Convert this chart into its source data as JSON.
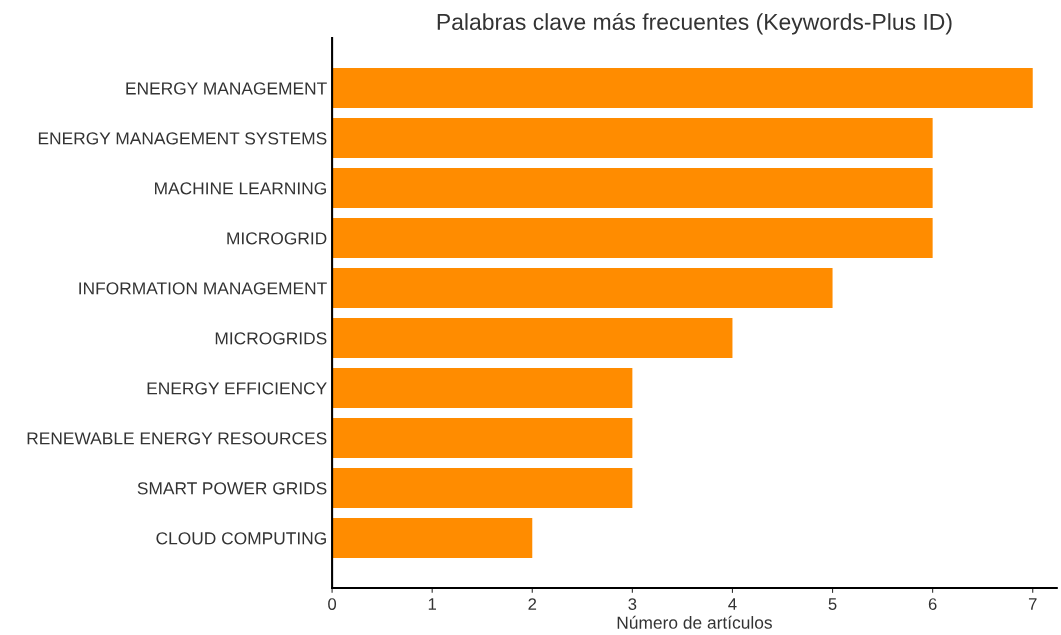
{
  "chart_data": {
    "type": "bar",
    "orientation": "horizontal",
    "title": "Palabras clave más frecuentes (Keywords-Plus ID)",
    "xlabel": "Número de artículos",
    "categories": [
      "ENERGY MANAGEMENT",
      "ENERGY MANAGEMENT SYSTEMS",
      "MACHINE LEARNING",
      "MICROGRID",
      "INFORMATION MANAGEMENT",
      "MICROGRIDS",
      "ENERGY EFFICIENCY",
      "RENEWABLE ENERGY RESOURCES",
      "SMART POWER GRIDS",
      "CLOUD COMPUTING"
    ],
    "values": [
      7,
      6,
      6,
      6,
      5,
      4,
      3,
      3,
      3,
      2
    ],
    "color": "#ff8c00",
    "xlim": [
      0,
      7.24
    ],
    "xticks": [
      0,
      1,
      2,
      3,
      4,
      5,
      6,
      7
    ],
    "grid": false
  }
}
